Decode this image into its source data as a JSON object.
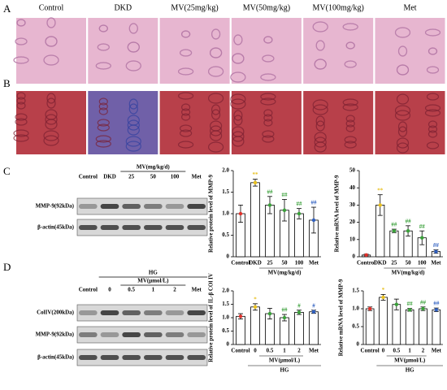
{
  "panel_labels": [
    "A",
    "B",
    "C",
    "D"
  ],
  "histology": {
    "labels": [
      "Control",
      "DKD",
      "MV(25mg/kg)",
      "MV(50mg/kg)",
      "MV(100mg/kg)",
      "Met"
    ]
  },
  "blot_c": {
    "group": "MV(mg/kg/d)",
    "columns": [
      "Control",
      "DKD",
      "25",
      "50",
      "100",
      "Met"
    ],
    "rows": [
      "MMP-9(92kDa)",
      "β-actin(45kDa)"
    ]
  },
  "blot_d": {
    "group_top": "HG",
    "group": "MV(μmol/L)",
    "columns": [
      "Control",
      "0",
      "0.5",
      "1",
      "2",
      "Met"
    ],
    "rows": [
      "ColIV(200kDa)",
      "MMP-9(92kDa)",
      "β-actin(45kDa)"
    ]
  },
  "chart_data": [
    {
      "type": "bar",
      "ylabel": "Relative protein level of MMP-9",
      "xlabel": "MV(mg/kg/d)",
      "categories": [
        "Control",
        "DKD",
        "25",
        "50",
        "100",
        "Met"
      ],
      "values": [
        1.0,
        1.72,
        1.2,
        1.08,
        1.0,
        0.85
      ],
      "errors": [
        0.2,
        0.08,
        0.2,
        0.25,
        0.12,
        0.3
      ],
      "point_colors": [
        "#e0302a",
        "#e8c020",
        "#3aa03a",
        "#3aa03a",
        "#3aa03a",
        "#3060c0"
      ],
      "annotations": [
        null,
        "**",
        "##",
        "##",
        "##",
        "##"
      ],
      "ylim": [
        0,
        2
      ],
      "yticks": [
        0,
        0.5,
        {
          "value": 1,
          "label": "1.0"
        },
        1.5,
        {
          "value": 2,
          "label": "2.0"
        }
      ]
    },
    {
      "type": "bar",
      "ylabel": "Relative mRNA level of MMP-9",
      "xlabel": "MV(mg/kg/d)",
      "categories": [
        "Control",
        "DKD",
        "25",
        "50",
        "100",
        "Met"
      ],
      "values": [
        1,
        30,
        15,
        15,
        11,
        3
      ],
      "errors": [
        0.5,
        6,
        1,
        3,
        4,
        1
      ],
      "point_colors": [
        "#e0302a",
        "#e8c020",
        "#3aa03a",
        "#3aa03a",
        "#3aa03a",
        "#3060c0"
      ],
      "annotations": [
        null,
        "**",
        "##",
        "##",
        "##",
        "##"
      ],
      "ylim": [
        0,
        50
      ],
      "yticks": [
        0,
        10,
        20,
        30,
        40,
        50
      ]
    },
    {
      "type": "bar",
      "ylabel": "Relative protein level of IL-β COl IV",
      "xlabel": "MV(μmol/L)",
      "group_label": "HG",
      "categories": [
        "Control",
        "0",
        "0.5",
        "1",
        "2",
        "Met"
      ],
      "values": [
        1.05,
        1.4,
        1.15,
        1.0,
        1.2,
        1.22
      ],
      "errors": [
        0.1,
        0.12,
        0.2,
        0.12,
        0.08,
        0.06
      ],
      "point_colors": [
        "#e0302a",
        "#e8c020",
        "#3aa03a",
        "#3aa03a",
        "#3aa03a",
        "#3060c0"
      ],
      "annotations": [
        null,
        "*",
        null,
        "##",
        "#",
        "#"
      ],
      "ylim": [
        0,
        2
      ],
      "yticks": [
        0,
        0.5,
        {
          "value": 1,
          "label": "1.0"
        },
        1.5,
        {
          "value": 2,
          "label": "2.0"
        }
      ]
    },
    {
      "type": "bar",
      "ylabel": "Relative mRNA level of MMP-9",
      "xlabel": "MV(μmol/L)",
      "group_label": "HG",
      "categories": [
        "Control",
        "0",
        "0.5",
        "1",
        "2",
        "Met"
      ],
      "values": [
        1.0,
        1.32,
        1.12,
        0.97,
        1.0,
        0.97
      ],
      "errors": [
        0.05,
        0.08,
        0.15,
        0.04,
        0.05,
        0.05
      ],
      "point_colors": [
        "#e0302a",
        "#e8c020",
        "#3aa03a",
        "#3aa03a",
        "#3aa03a",
        "#3060c0"
      ],
      "annotations": [
        null,
        "*",
        null,
        "##",
        "##",
        "##"
      ],
      "ylim": [
        0,
        1.5
      ],
      "yticks": [
        0,
        0.5,
        {
          "value": 1,
          "label": "1.0"
        },
        1.5
      ]
    }
  ]
}
